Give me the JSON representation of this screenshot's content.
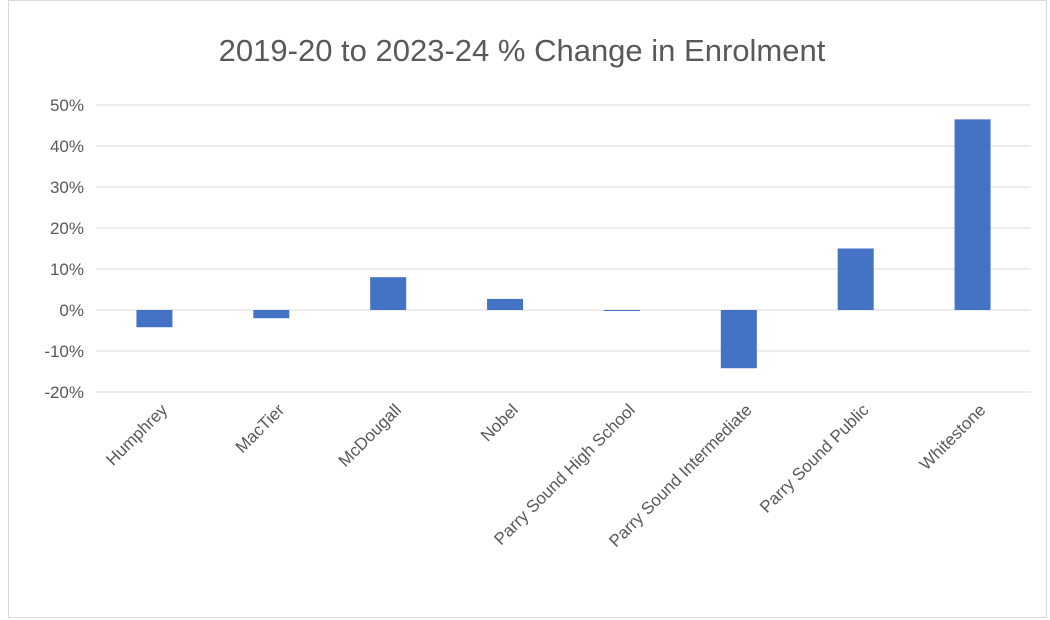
{
  "chart_data": {
    "type": "bar",
    "title": "2019-20 to 2023-24 % Change in Enrolment",
    "xlabel": "",
    "ylabel": "",
    "categories": [
      "Humphrey",
      "MacTier",
      "McDougall",
      "Nobel",
      "Parry Sound High School",
      "Parry Sound Intermediate",
      "Parry Sound Public",
      "Whitestone"
    ],
    "values": [
      -4.2,
      -2.0,
      8.0,
      2.7,
      -0.2,
      -14.2,
      15.0,
      46.5
    ],
    "value_format": "percent",
    "ylim": [
      -20,
      50
    ],
    "yticks": [
      -20,
      -10,
      0,
      10,
      20,
      30,
      40,
      50
    ],
    "ytick_labels": [
      "-20%",
      "-10%",
      "0%",
      "10%",
      "20%",
      "30%",
      "40%",
      "50%"
    ],
    "grid": true,
    "legend": "none",
    "colors": {
      "bar": "#4472C4",
      "grid": "#d9d9d9",
      "text": "#595959"
    }
  }
}
